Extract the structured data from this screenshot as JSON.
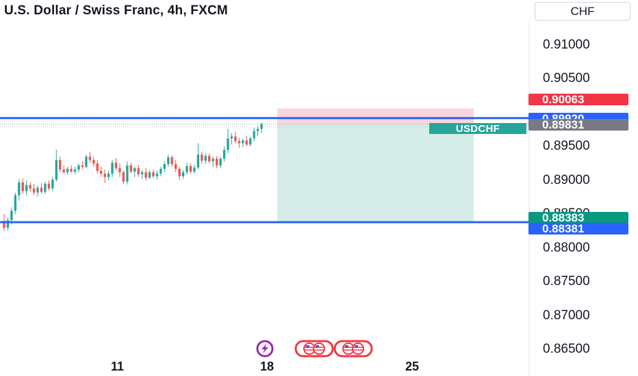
{
  "header": {
    "title": "U.S. Dollar / Swiss Franc, 4h, FXCM",
    "currency": "CHF"
  },
  "price_axis": {
    "ticks": [
      "0.91000",
      "0.90500",
      "0.89500",
      "0.89000",
      "0.88500",
      "0.88000",
      "0.87500",
      "0.87000",
      "0.86500"
    ],
    "badges": [
      {
        "label": "0.90063",
        "color": "#f23645"
      },
      {
        "label": "0.89920",
        "color": "#2962ff"
      },
      {
        "label": "0.89831",
        "color": "#787b86"
      },
      {
        "label": "0.88383",
        "color": "#089981"
      },
      {
        "label": "0.88381",
        "color": "#2962ff"
      }
    ]
  },
  "symbol_tag": "USDCHF",
  "time_axis": {
    "ticks": [
      "11",
      "18",
      "25"
    ]
  },
  "events": [
    {
      "icon": "lightning-icon",
      "color": "#9c27b0"
    },
    {
      "icon": "us-flag-icon",
      "color": "#f23645"
    },
    {
      "icon": "us-flag-icon",
      "color": "#f23645"
    }
  ],
  "colors": {
    "up": "#26a69a",
    "down": "#ef5350",
    "line": "#2962ff",
    "target_zone": "#d6ece8",
    "stop_zone": "#fbd5dd"
  },
  "chart_data": {
    "type": "candlestick",
    "symbol": "USDCHF",
    "interval": "4h",
    "ylim": [
      0.864,
      0.9135
    ],
    "horizontal_lines": [
      0.8992,
      0.88381
    ],
    "position": {
      "entry": 0.89831,
      "stop": 0.90063,
      "target": 0.88383
    },
    "candles": [
      [
        0.884,
        0.885,
        0.8825,
        0.883
      ],
      [
        0.883,
        0.8845,
        0.8826,
        0.8841
      ],
      [
        0.8841,
        0.886,
        0.8835,
        0.8855
      ],
      [
        0.8855,
        0.8882,
        0.885,
        0.8878
      ],
      [
        0.8878,
        0.8902,
        0.887,
        0.8897
      ],
      [
        0.8897,
        0.8903,
        0.888,
        0.8884
      ],
      [
        0.8884,
        0.89,
        0.8878,
        0.8893
      ],
      [
        0.8893,
        0.8897,
        0.8883,
        0.8888
      ],
      [
        0.8888,
        0.8895,
        0.8878,
        0.8882
      ],
      [
        0.8882,
        0.8892,
        0.8876,
        0.8889
      ],
      [
        0.8889,
        0.8896,
        0.888,
        0.8883
      ],
      [
        0.8883,
        0.8898,
        0.888,
        0.8895
      ],
      [
        0.8895,
        0.89,
        0.8885,
        0.8888
      ],
      [
        0.8888,
        0.8905,
        0.8884,
        0.8901
      ],
      [
        0.8901,
        0.8945,
        0.8898,
        0.893
      ],
      [
        0.893,
        0.8935,
        0.8912,
        0.8916
      ],
      [
        0.8916,
        0.8922,
        0.891,
        0.8912
      ],
      [
        0.8912,
        0.892,
        0.8908,
        0.8917
      ],
      [
        0.8917,
        0.8922,
        0.8911,
        0.8913
      ],
      [
        0.8913,
        0.892,
        0.8909,
        0.8916
      ],
      [
        0.8916,
        0.8925,
        0.8912,
        0.8922
      ],
      [
        0.8922,
        0.8928,
        0.8917,
        0.892
      ],
      [
        0.892,
        0.8938,
        0.8918,
        0.8935
      ],
      [
        0.8935,
        0.8942,
        0.8926,
        0.893
      ],
      [
        0.893,
        0.8935,
        0.892,
        0.8925
      ],
      [
        0.8925,
        0.893,
        0.891,
        0.8914
      ],
      [
        0.8914,
        0.892,
        0.8905,
        0.891
      ],
      [
        0.891,
        0.8916,
        0.8896,
        0.8905
      ],
      [
        0.8905,
        0.8915,
        0.89,
        0.891
      ],
      [
        0.891,
        0.893,
        0.8905,
        0.8926
      ],
      [
        0.8926,
        0.8933,
        0.8915,
        0.8918
      ],
      [
        0.8918,
        0.8925,
        0.8905,
        0.8912
      ],
      [
        0.8912,
        0.8915,
        0.8895,
        0.8898
      ],
      [
        0.8898,
        0.8928,
        0.8894,
        0.8922
      ],
      [
        0.8922,
        0.8926,
        0.891,
        0.8913
      ],
      [
        0.8913,
        0.892,
        0.8905,
        0.8918
      ],
      [
        0.8918,
        0.8923,
        0.8905,
        0.8909
      ],
      [
        0.8909,
        0.8915,
        0.8902,
        0.8912
      ],
      [
        0.8912,
        0.8918,
        0.89,
        0.8904
      ],
      [
        0.8904,
        0.8915,
        0.8902,
        0.8912
      ],
      [
        0.8912,
        0.8916,
        0.8903,
        0.8906
      ],
      [
        0.8906,
        0.8914,
        0.8901,
        0.891
      ],
      [
        0.891,
        0.892,
        0.8906,
        0.8917
      ],
      [
        0.8917,
        0.8928,
        0.8912,
        0.8924
      ],
      [
        0.8924,
        0.8938,
        0.892,
        0.8934
      ],
      [
        0.8934,
        0.8937,
        0.892,
        0.8924
      ],
      [
        0.8924,
        0.893,
        0.8912,
        0.8917
      ],
      [
        0.8917,
        0.892,
        0.89,
        0.8906
      ],
      [
        0.8906,
        0.8915,
        0.8902,
        0.8912
      ],
      [
        0.8912,
        0.8926,
        0.8908,
        0.8921
      ],
      [
        0.8921,
        0.8925,
        0.891,
        0.8913
      ],
      [
        0.8913,
        0.8923,
        0.891,
        0.8919
      ],
      [
        0.8919,
        0.8955,
        0.8916,
        0.8938
      ],
      [
        0.8938,
        0.8942,
        0.8925,
        0.8929
      ],
      [
        0.8929,
        0.894,
        0.8924,
        0.8936
      ],
      [
        0.8936,
        0.894,
        0.8925,
        0.8928
      ],
      [
        0.8928,
        0.8935,
        0.892,
        0.8932
      ],
      [
        0.8932,
        0.8936,
        0.8918,
        0.8922
      ],
      [
        0.8922,
        0.8935,
        0.8918,
        0.8932
      ],
      [
        0.8932,
        0.895,
        0.8928,
        0.8945
      ],
      [
        0.8945,
        0.8976,
        0.894,
        0.8962
      ],
      [
        0.8962,
        0.897,
        0.8953,
        0.8965
      ],
      [
        0.8965,
        0.8972,
        0.8955,
        0.8958
      ],
      [
        0.8958,
        0.8963,
        0.8948,
        0.8955
      ],
      [
        0.8955,
        0.8962,
        0.8949,
        0.8959
      ],
      [
        0.8959,
        0.8966,
        0.895,
        0.8953
      ],
      [
        0.8953,
        0.8965,
        0.895,
        0.8962
      ],
      [
        0.8962,
        0.8978,
        0.8958,
        0.8973
      ],
      [
        0.8973,
        0.898,
        0.8965,
        0.8976
      ],
      [
        0.8976,
        0.8986,
        0.897,
        0.8983
      ]
    ]
  }
}
